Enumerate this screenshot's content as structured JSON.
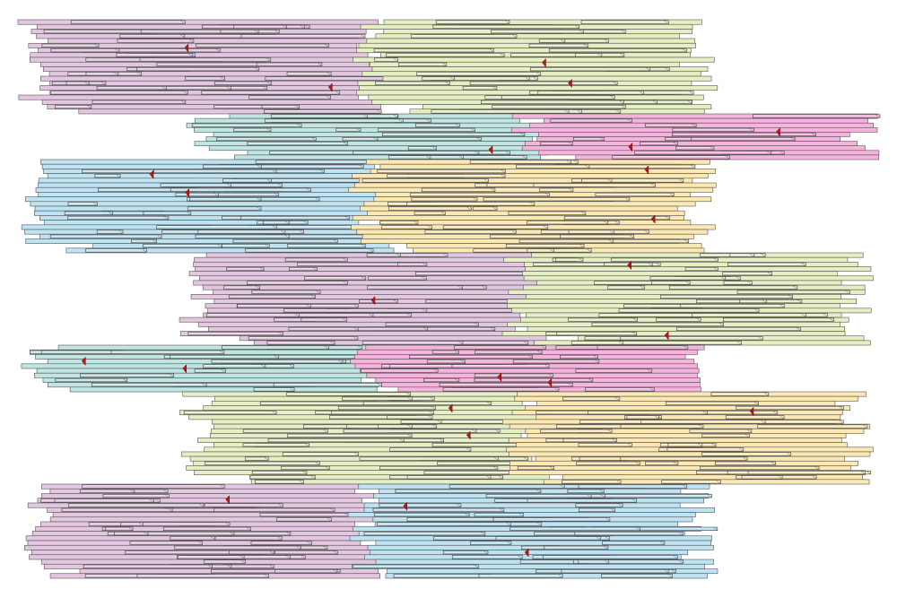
{
  "panels": {
    "colors": [
      "#e3c7e1",
      "#e6efc3",
      "#bfe6e3",
      "#f5b3dd",
      "#bee3f2",
      "#fbe8b3"
    ]
  }
}
